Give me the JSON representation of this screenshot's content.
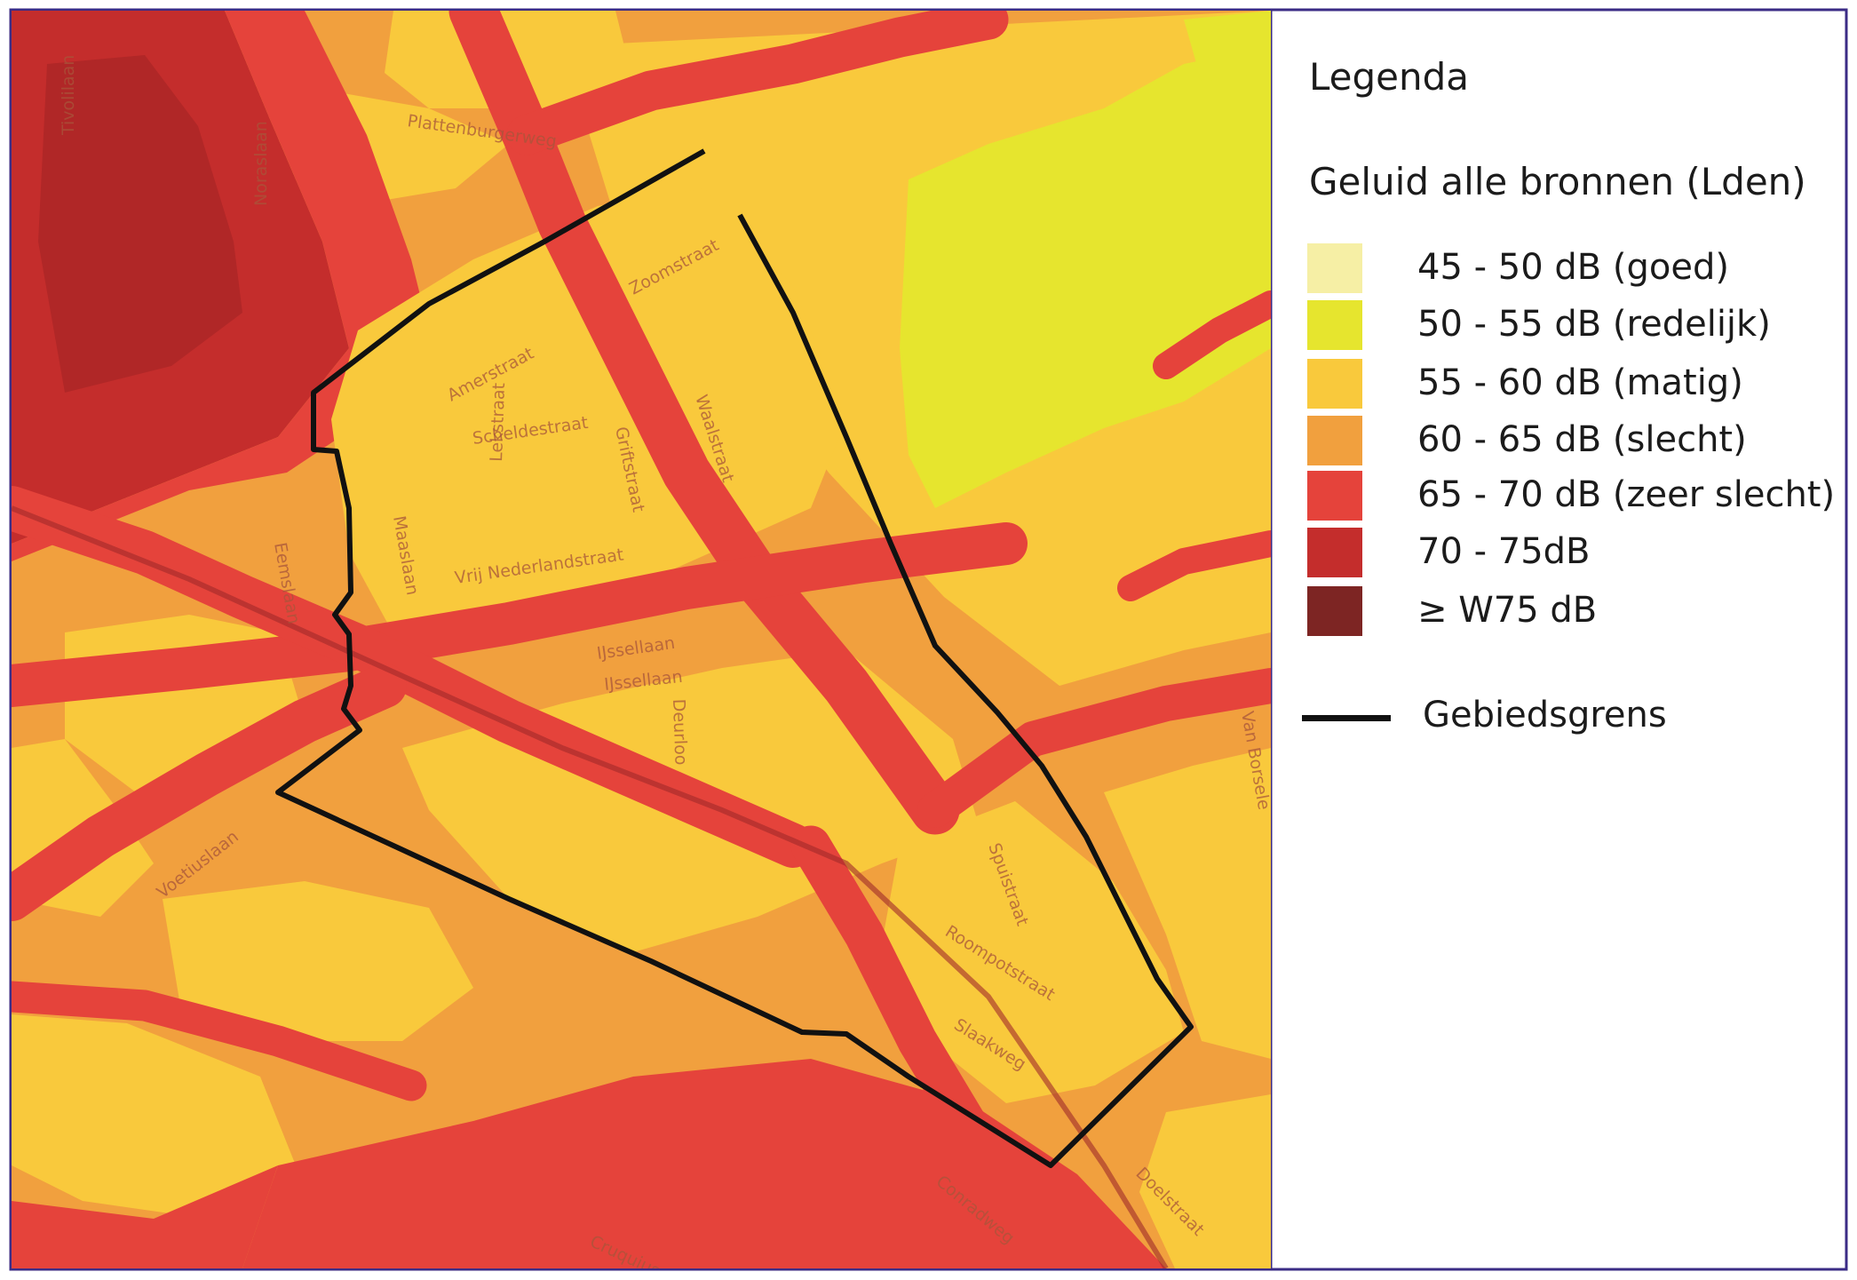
{
  "legend": {
    "title": "Legenda",
    "subtitle": "Geluid alle bronnen (Lden)",
    "classes": [
      {
        "label": "45 - 50 dB (goed)",
        "color": "#f6efa5"
      },
      {
        "label": "50 - 55 dB (redelijk)",
        "color": "#e6e52e"
      },
      {
        "label": "55 - 60 dB (matig)",
        "color": "#f9c93c"
      },
      {
        "label": "60 - 65 dB (slecht)",
        "color": "#f1a03e"
      },
      {
        "label": "65 - 70 dB (zeer slecht)",
        "color": "#e5433b"
      },
      {
        "label": "70 - 75dB",
        "color": "#c42d2c"
      },
      {
        "label": "≥ W75 dB",
        "color": "#7d2523"
      }
    ],
    "boundary_label": "Gebiedsgrens",
    "boundary_color": "#111111"
  },
  "streets": [
    "Tivolilaan",
    "Plattenburgerweg",
    "Noraslaan",
    "Zoomstraat",
    "Amerstraat",
    "Scheldestraat",
    "Lekstraat",
    "Griftstraat",
    "Waalstraat",
    "Maaslaan",
    "Vrij Nederlandstraat",
    "Eemslaan",
    "IJssellaan",
    "IJssellaan",
    "Deurloo",
    "Voetiuslaan",
    "Spuistraat",
    "Roompotstraat",
    "Slaakweg",
    "Van Borsele",
    "Doelstraat",
    "Cruquius",
    "Conradweg"
  ],
  "frame_color": "#3b2c86"
}
